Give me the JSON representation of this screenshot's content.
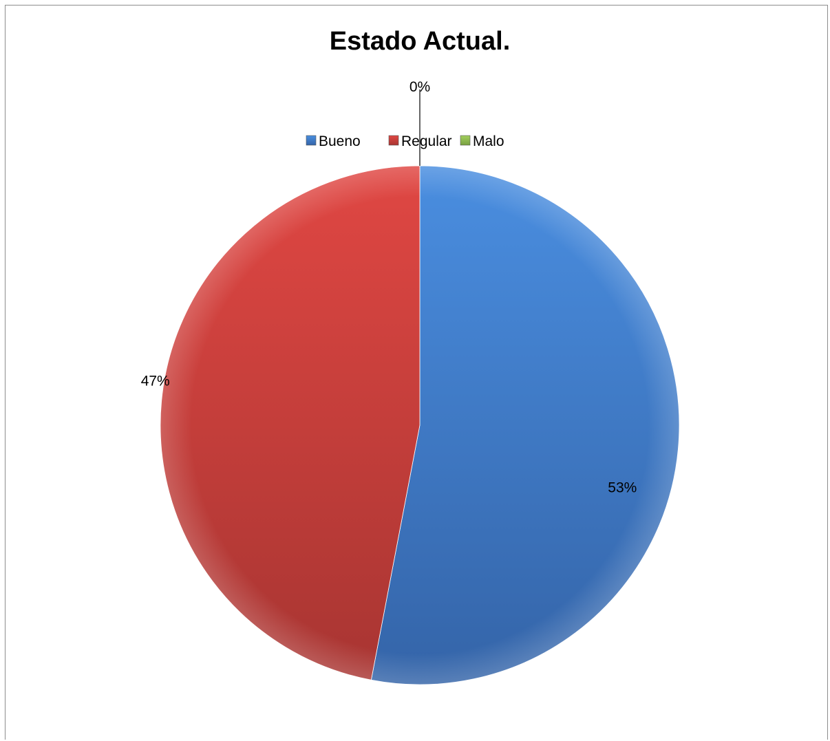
{
  "chart_data": {
    "type": "pie",
    "title": "Estado Actual.",
    "categories": [
      "Bueno",
      "Regular",
      "Malo"
    ],
    "values": [
      53,
      47,
      0
    ],
    "labels": [
      "53%",
      "47%",
      "0%"
    ],
    "colors": [
      "#3f7fcc",
      "#c83c3a",
      "#8fbc4f"
    ],
    "legend_position": "top",
    "start_angle": "top",
    "direction": "clockwise"
  }
}
